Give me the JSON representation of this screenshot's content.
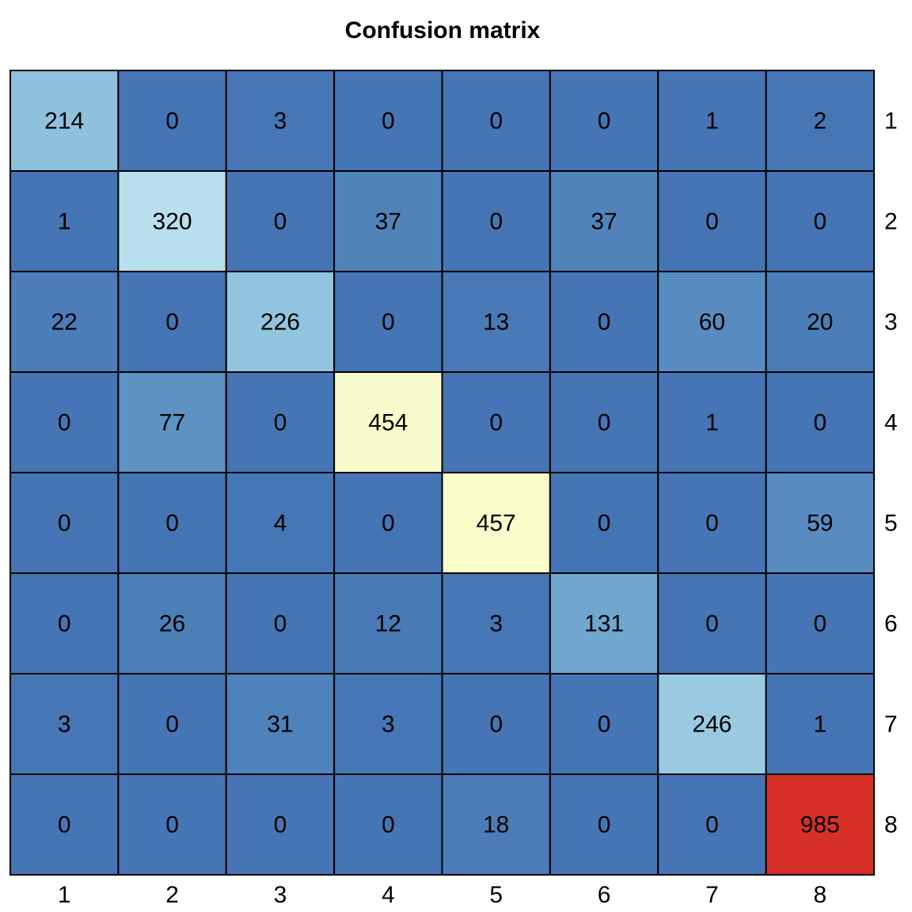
{
  "chart_data": {
    "type": "heatmap",
    "title": "Confusion matrix",
    "x_ticks": [
      "1",
      "2",
      "3",
      "4",
      "5",
      "6",
      "7",
      "8"
    ],
    "y_ticks": [
      "1",
      "2",
      "3",
      "4",
      "5",
      "6",
      "7",
      "8"
    ],
    "y_tick_side": "right",
    "x_tick_side": "bottom",
    "matrix": [
      [
        214,
        0,
        3,
        0,
        0,
        0,
        1,
        2
      ],
      [
        1,
        320,
        0,
        37,
        0,
        37,
        0,
        0
      ],
      [
        22,
        0,
        226,
        0,
        13,
        0,
        60,
        20
      ],
      [
        0,
        77,
        0,
        454,
        0,
        0,
        1,
        0
      ],
      [
        0,
        0,
        4,
        0,
        457,
        0,
        0,
        59
      ],
      [
        0,
        26,
        0,
        12,
        3,
        131,
        0,
        0
      ],
      [
        3,
        0,
        31,
        3,
        0,
        0,
        246,
        1
      ],
      [
        0,
        0,
        0,
        0,
        18,
        0,
        0,
        985
      ]
    ],
    "value_range": [
      0,
      985
    ],
    "colors": {
      "low": "#4575b4",
      "mid_low": "#74add1",
      "light": "#abd9e9",
      "pale": "#e0f3f8",
      "mid": "#ffffbf",
      "high": "#d73027",
      "grid": "#000000",
      "text": "#000000"
    }
  }
}
